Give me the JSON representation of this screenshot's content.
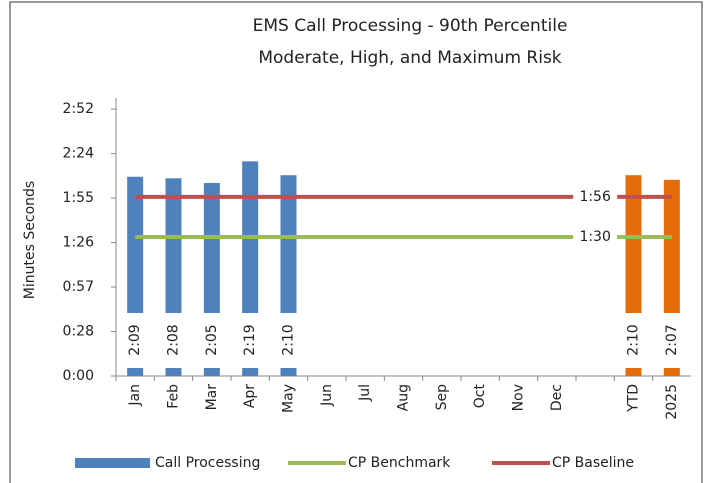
{
  "chart_data": {
    "type": "bar",
    "title": [
      "EMS Call Processing - 90th Percentile",
      "Moderate, High, and Maximum Risk"
    ],
    "y_label": "Minutes Seconds",
    "categories": [
      "Jan",
      "Feb",
      "Mar",
      "Apr",
      "May",
      "Jun",
      "Jul",
      "Aug",
      "Sep",
      "Oct",
      "Nov",
      "Dec",
      null,
      "YTD",
      "2025"
    ],
    "ylim": [
      0,
      180
    ],
    "yticks": [
      {
        "value": 0,
        "label": "0:00"
      },
      {
        "value": 28.8,
        "label": "0:28"
      },
      {
        "value": 57.6,
        "label": "0:57"
      },
      {
        "value": 86.4,
        "label": "1:26"
      },
      {
        "value": 115.2,
        "label": "1:55"
      },
      {
        "value": 144,
        "label": "2:24"
      },
      {
        "value": 172.8,
        "label": "2:52"
      }
    ],
    "series": [
      {
        "name": "Call Processing",
        "color": "#4f81bd",
        "colors": [
          "#4f81bd",
          "#4f81bd",
          "#4f81bd",
          "#4f81bd",
          "#4f81bd",
          "#4f81bd",
          "#4f81bd",
          "#4f81bd",
          "#4f81bd",
          "#4f81bd",
          "#4f81bd",
          "#4f81bd",
          "#4f81bd",
          "#e46c0a",
          "#e46c0a"
        ],
        "values": [
          129,
          128,
          125,
          139,
          130,
          null,
          null,
          null,
          null,
          null,
          null,
          null,
          null,
          130,
          127
        ],
        "value_labels": [
          "2:09",
          "2:08",
          "2:05",
          "2:19",
          "2:10",
          null,
          null,
          null,
          null,
          null,
          null,
          null,
          null,
          "2:10",
          "2:07"
        ]
      },
      {
        "name": "CP Benchmark",
        "type": "line",
        "color": "#9bbb59",
        "values": [
          90,
          90,
          90,
          90,
          90,
          90,
          90,
          90,
          90,
          90,
          90,
          90,
          90,
          90,
          90
        ],
        "value_labels": [
          null,
          null,
          null,
          null,
          null,
          null,
          null,
          null,
          null,
          null,
          null,
          null,
          "1:30",
          null,
          null
        ]
      },
      {
        "name": "CP Baseline",
        "type": "line",
        "color": "#c0504d",
        "values": [
          116,
          116,
          116,
          116,
          116,
          116,
          116,
          116,
          116,
          116,
          116,
          116,
          116,
          116,
          116
        ],
        "value_labels": [
          null,
          null,
          null,
          null,
          null,
          null,
          null,
          null,
          null,
          null,
          null,
          null,
          "1:56",
          null,
          null
        ]
      }
    ]
  }
}
